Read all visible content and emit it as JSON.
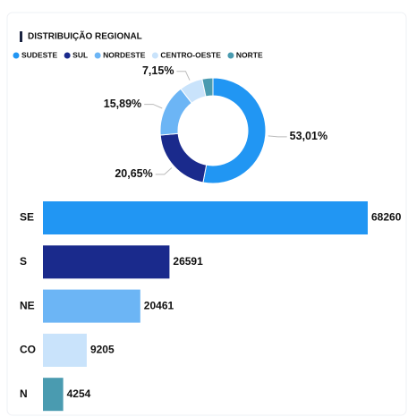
{
  "header": {
    "title": "DISTRIBUIÇÃO REGIONAL"
  },
  "chart_data": [
    {
      "type": "donut",
      "categories": [
        "SUDESTE",
        "SUL",
        "NORDESTE",
        "CENTRO-OESTE",
        "NORTE"
      ],
      "values": [
        53.01,
        20.65,
        15.89,
        7.15,
        3.3
      ],
      "value_labels": [
        "53,01%",
        "20,65%",
        "15,89%",
        "7,15%",
        null
      ],
      "colors": [
        "#2196f3",
        "#1a2a8c",
        "#6cb5f5",
        "#c9e3fb",
        "#4a9bb0"
      ],
      "legend": "top-left"
    },
    {
      "type": "hbar",
      "categories": [
        "SE",
        "S",
        "NE",
        "CO",
        "N"
      ],
      "values": [
        68260,
        26591,
        20461,
        9205,
        4254
      ],
      "colors": [
        "#2196f3",
        "#1a2a8c",
        "#6cb5f5",
        "#c9e3fb",
        "#4a9bb0"
      ]
    }
  ]
}
